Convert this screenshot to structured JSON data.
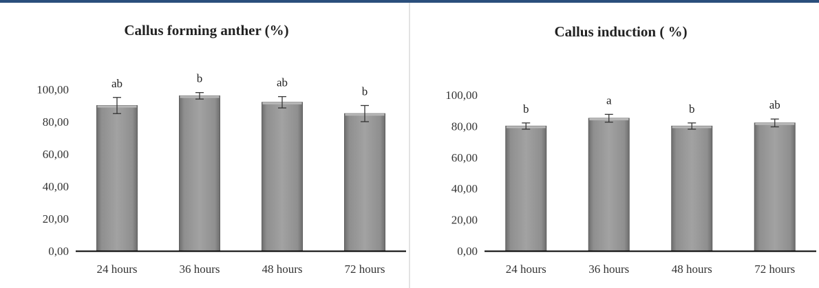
{
  "colors": {
    "bar": "#8f8f8f",
    "bar_edge": "#5e5e5e",
    "axis": "#000000",
    "error_bar": "#333333",
    "header_rule": "#2a4f7c"
  },
  "chart_data": [
    {
      "type": "bar",
      "title": "Callus forming anther (%)",
      "categories": [
        "24 hours",
        "36 hours",
        "48 hours",
        "72 hours"
      ],
      "values": [
        90,
        96,
        92,
        85
      ],
      "errors": [
        5,
        2,
        3.5,
        5
      ],
      "annotations": [
        "ab",
        "b",
        "ab",
        "b"
      ],
      "ylim": [
        0,
        100
      ],
      "ytick_values": [
        0,
        20,
        40,
        60,
        80,
        100
      ],
      "yticks": [
        "0,00",
        "20,00",
        "40,00",
        "60,00",
        "80,00",
        "100,00"
      ],
      "xlabel": "",
      "ylabel": "",
      "grid": false,
      "legend": "none"
    },
    {
      "type": "bar",
      "title": "Callus induction ( %)",
      "categories": [
        "24 hours",
        "36 hours",
        "48 hours",
        "72 hours"
      ],
      "values": [
        80,
        85,
        80,
        82
      ],
      "errors": [
        2,
        2.5,
        2,
        2.5
      ],
      "annotations": [
        "b",
        "a",
        "b",
        "ab"
      ],
      "ylim": [
        0,
        100
      ],
      "ytick_values": [
        0,
        20,
        40,
        60,
        80,
        100
      ],
      "yticks": [
        "0,00",
        "20,00",
        "40,00",
        "60,00",
        "80,00",
        "100,00"
      ],
      "xlabel": "",
      "ylabel": "",
      "grid": false,
      "legend": "none"
    }
  ]
}
